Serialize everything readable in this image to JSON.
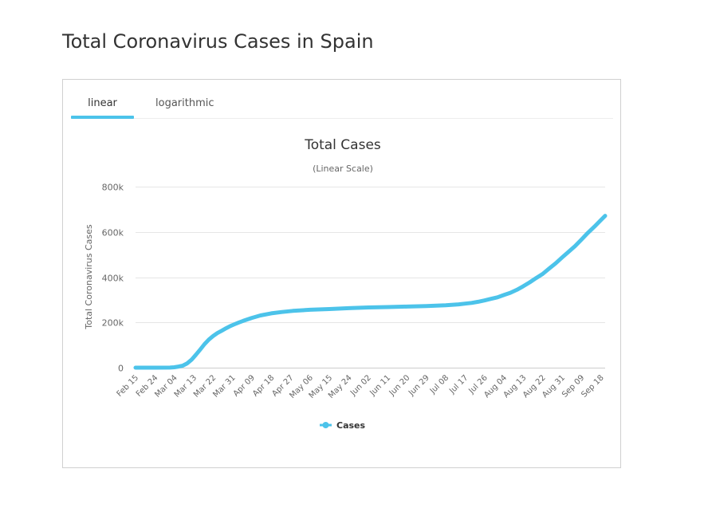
{
  "page": {
    "title": "Total Coronavirus Cases in Spain"
  },
  "tabs": [
    {
      "label": "linear",
      "active": true
    },
    {
      "label": "logarithmic",
      "active": false
    }
  ],
  "chart_data": {
    "type": "line",
    "title": "Total Cases",
    "subtitle": "(Linear Scale)",
    "ylabel": "Total Coronavirus Cases",
    "xlabel": "",
    "ylim": [
      0,
      800000
    ],
    "yticks": [
      0,
      200000,
      400000,
      600000,
      800000
    ],
    "ytick_labels": [
      "0",
      "200k",
      "400k",
      "600k",
      "800k"
    ],
    "x_ticks": [
      "Feb 15",
      "Feb 24",
      "Mar 04",
      "Mar 13",
      "Mar 22",
      "Mar 31",
      "Apr 09",
      "Apr 18",
      "Apr 27",
      "May 06",
      "May 15",
      "May 24",
      "Jun 02",
      "Jun 11",
      "Jun 20",
      "Jun 29",
      "Jul 08",
      "Jul 17",
      "Jul 26",
      "Aug 04",
      "Aug 13",
      "Aug 22",
      "Aug 31",
      "Sep 09",
      "Sep 18"
    ],
    "grid": true,
    "legend_position": "bottom-center",
    "accent_color": "#4cc3ea",
    "series": [
      {
        "name": "Cases",
        "x": [
          0,
          9,
          16,
          18,
          20,
          22,
          24,
          26,
          28,
          30,
          32,
          34,
          36,
          38,
          40,
          42,
          44,
          46,
          48,
          50,
          54,
          58,
          63,
          68,
          73,
          81,
          90,
          99,
          108,
          117,
          126,
          135,
          144,
          150,
          153,
          156,
          159,
          162,
          165,
          168,
          171,
          174,
          177,
          180,
          183,
          186,
          189,
          192,
          195,
          198,
          201,
          204,
          207,
          210,
          213,
          216,
          218
        ],
        "values": [
          2,
          2,
          300,
          1700,
          5000,
          9000,
          19000,
          35000,
          57000,
          80000,
          104000,
          124000,
          140000,
          153000,
          163000,
          174000,
          184000,
          192000,
          200000,
          207000,
          220000,
          231000,
          240000,
          246000,
          251000,
          256000,
          259000,
          263000,
          266000,
          268000,
          270000,
          272000,
          276000,
          280000,
          283000,
          286000,
          291000,
          297000,
          304000,
          311000,
          321000,
          331000,
          344000,
          360000,
          377000,
          396000,
          414000,
          438000,
          461000,
          487000,
          512000,
          537000,
          566000,
          596000,
          623000,
          652000,
          671000
        ]
      }
    ]
  }
}
